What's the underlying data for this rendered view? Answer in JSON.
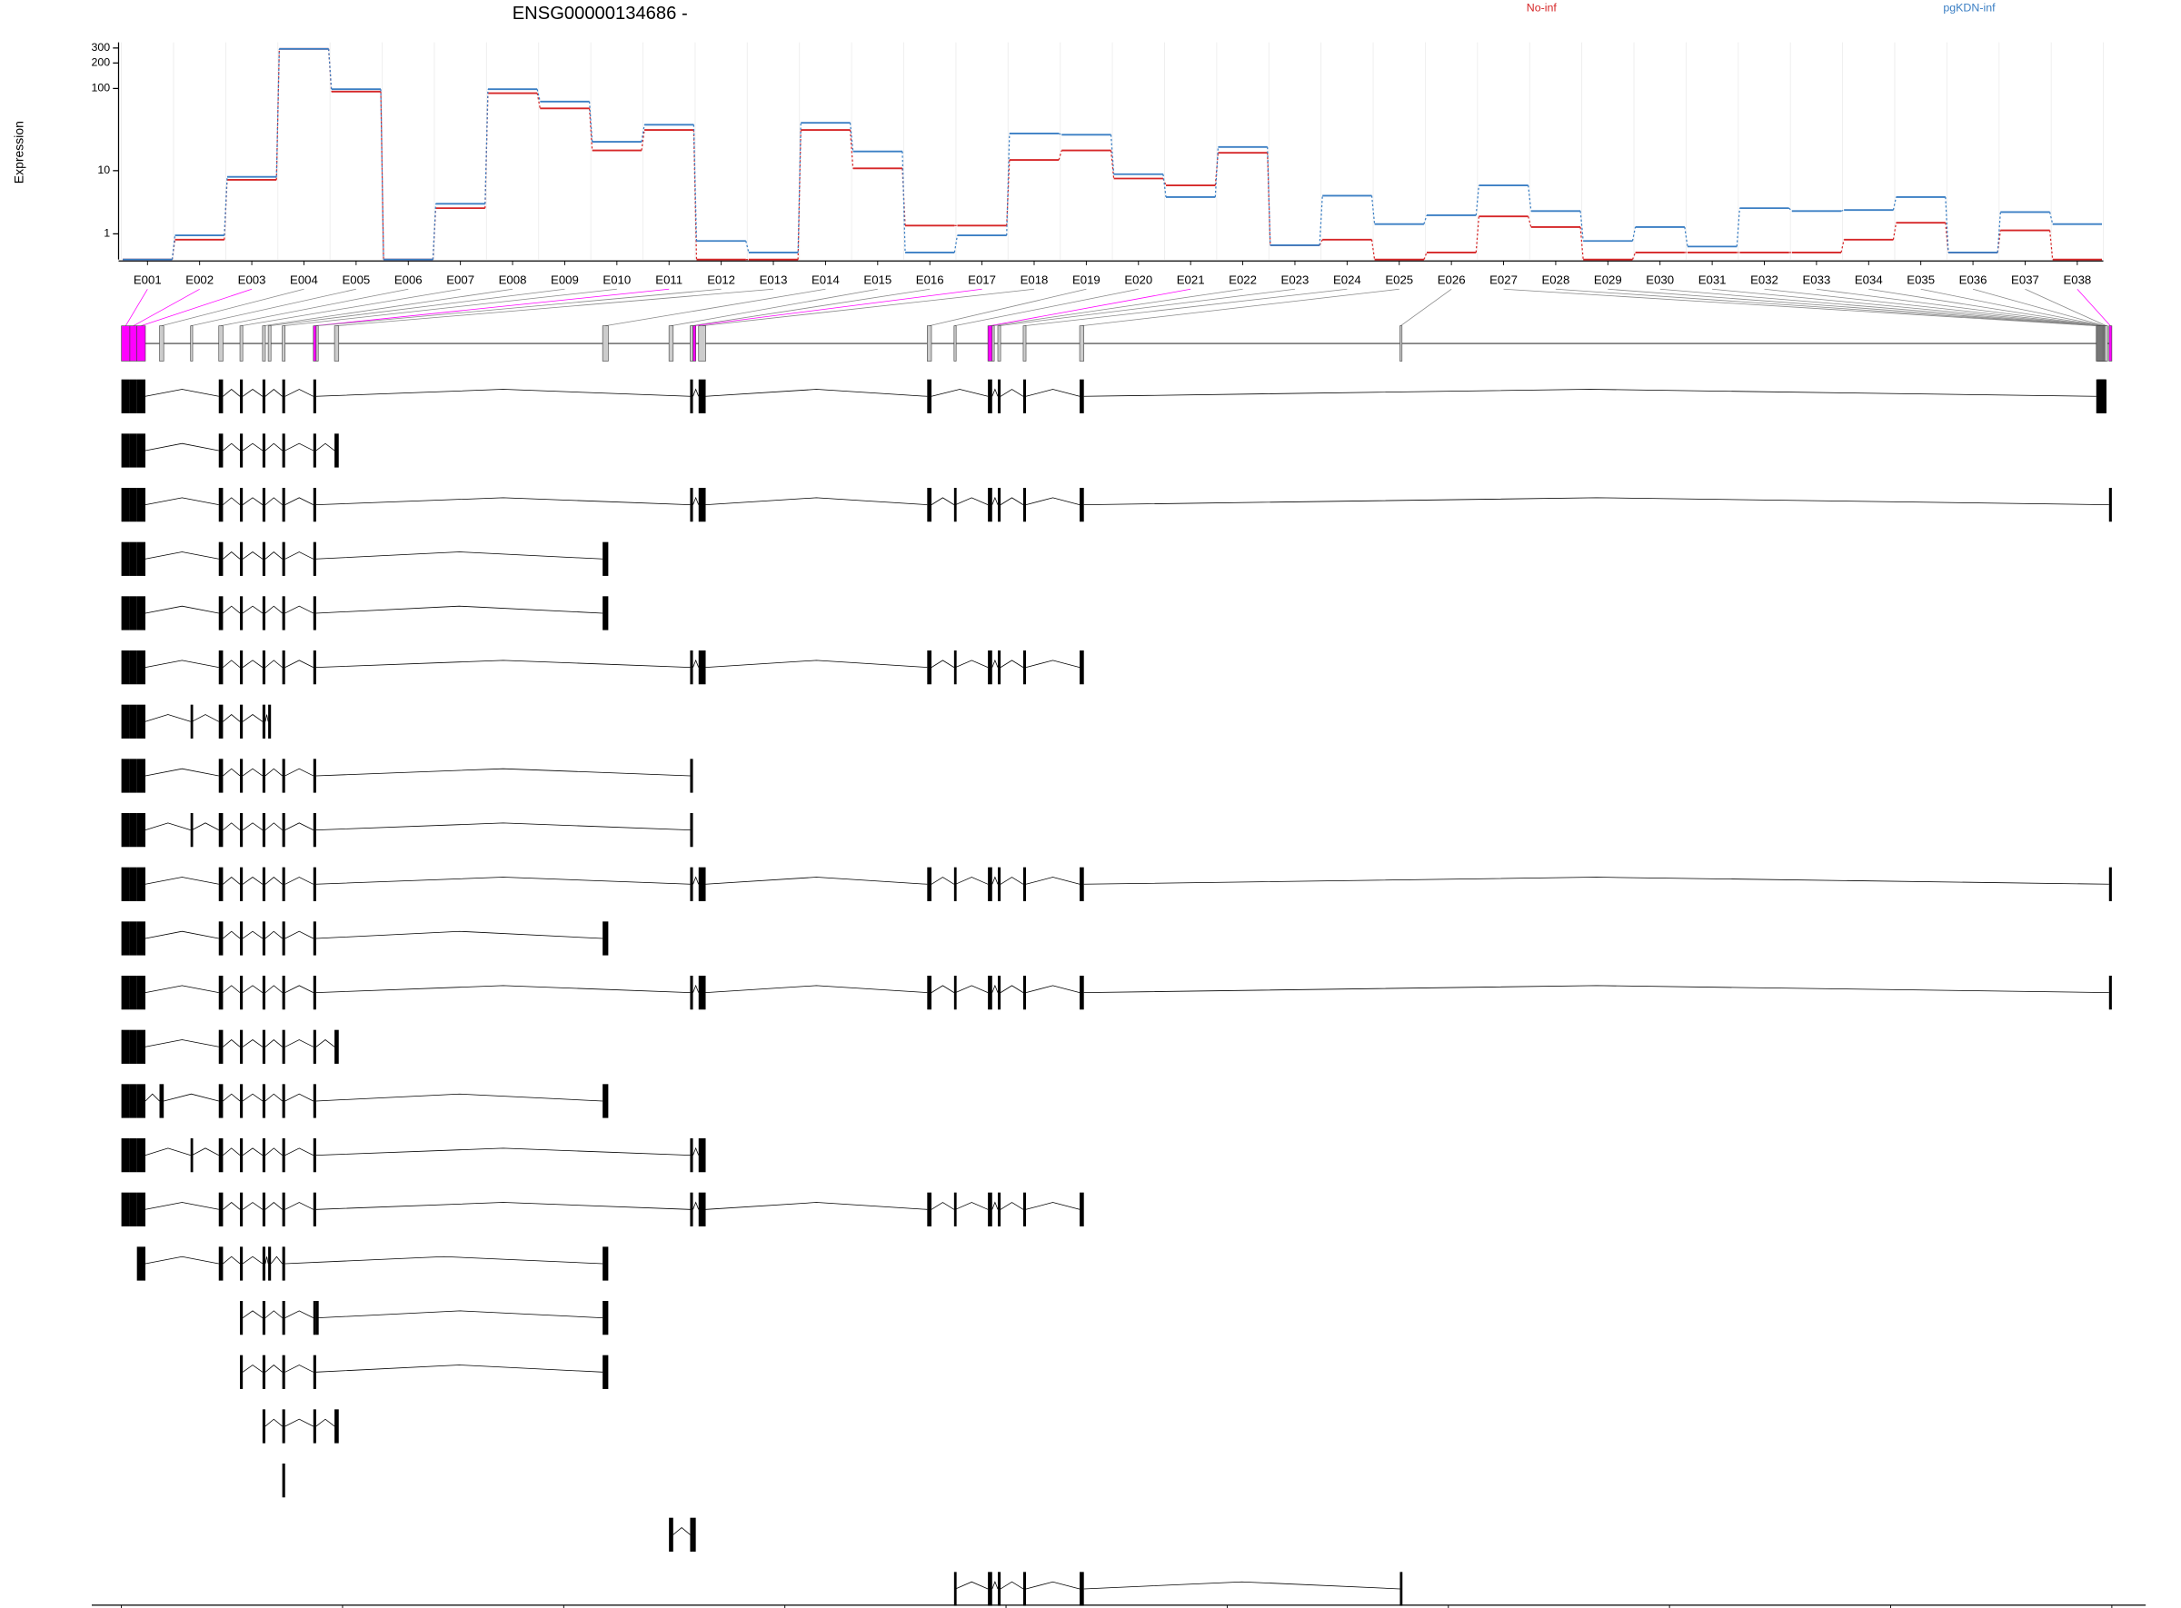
{
  "chart_data": {
    "type": "line",
    "step": true,
    "title": "ENSG00000134686 -",
    "ylabel": "Expression",
    "scale": "log1p",
    "grid": true,
    "ylim": [
      0,
      350
    ],
    "yticks": [
      1,
      10,
      100,
      200,
      300
    ],
    "categories": [
      "E001",
      "E002",
      "E003",
      "E004",
      "E005",
      "E006",
      "E007",
      "E008",
      "E009",
      "E010",
      "E011",
      "E012",
      "E013",
      "E014",
      "E015",
      "E016",
      "E017",
      "E018",
      "E019",
      "E020",
      "E021",
      "E022",
      "E023",
      "E024",
      "E025",
      "E026",
      "E027",
      "E028",
      "E029",
      "E030",
      "E031",
      "E032",
      "E033",
      "E034",
      "E035",
      "E036",
      "E037",
      "E038"
    ],
    "series": [
      {
        "name": "No-inf",
        "color": "#d62728",
        "values": [
          0,
          0.71,
          7.6,
          293,
          92,
          0,
          3.0,
          88,
          58,
          18,
          32,
          0,
          0,
          32,
          10.7,
          1.5,
          1.5,
          13.7,
          18,
          7.9,
          6.4,
          16.8,
          0.47,
          0.71,
          0,
          0.21,
          2.2,
          1.4,
          0,
          0.21,
          0.21,
          0.21,
          0.21,
          0.71,
          1.7,
          0.21,
          1.2,
          0
        ]
      },
      {
        "name": "pgKDN-inf",
        "color": "#3b7fc4",
        "values": [
          0,
          0.92,
          8.3,
          293,
          98,
          0,
          3.5,
          98,
          70,
          23,
          37,
          0.65,
          0.21,
          39,
          17.5,
          0.21,
          0.92,
          29,
          28,
          9.0,
          4.4,
          19.8,
          0.47,
          4.6,
          1.6,
          2.3,
          6.4,
          2.7,
          0.65,
          1.4,
          0.42,
          3.0,
          2.7,
          2.8,
          4.4,
          0.21,
          2.6,
          1.6
        ]
      }
    ],
    "gene_model": {
      "highlight_color": "#ff00ff",
      "highlight": [
        "E001",
        "E002",
        "E003",
        "E011",
        "E017",
        "E021",
        "E038"
      ],
      "exons": [
        [
          33323623,
          33324080
        ],
        [
          33324080,
          33324461
        ],
        [
          33324461,
          33324918
        ],
        [
          33325680,
          33325909
        ],
        [
          33327357,
          33327433
        ],
        [
          33328881,
          33329110
        ],
        [
          33330024,
          33330177
        ],
        [
          33331243,
          33331396
        ],
        [
          33331548,
          33331700
        ],
        [
          33332310,
          33332462
        ],
        [
          33333986,
          33334138
        ],
        [
          33334138,
          33334215
        ],
        [
          33335129,
          33335358
        ],
        [
          33349607,
          33349912
        ],
        [
          33353189,
          33353417
        ],
        [
          33354332,
          33354484
        ],
        [
          33354484,
          33354636
        ],
        [
          33354789,
          33355170
        ],
        [
          33367133,
          33367362
        ],
        [
          33368581,
          33368657
        ],
        [
          33370410,
          33370639
        ],
        [
          33370639,
          33370715
        ],
        [
          33370944,
          33371096
        ],
        [
          33372315,
          33372467
        ],
        [
          33375363,
          33375591
        ],
        [
          33392655,
          33392731
        ],
        [
          33430255,
          33430301
        ],
        [
          33430301,
          33430347
        ],
        [
          33430347,
          33430393
        ],
        [
          33430393,
          33430439
        ],
        [
          33430439,
          33430485
        ],
        [
          33430485,
          33430531
        ],
        [
          33430531,
          33430577
        ],
        [
          33430577,
          33430623
        ],
        [
          33430623,
          33430669
        ],
        [
          33430669,
          33430715
        ],
        [
          33430715,
          33430865
        ],
        [
          33430943,
          33431095
        ]
      ],
      "transcripts": [
        [
          "E001",
          "E002",
          "E003",
          "E006",
          "E007",
          "E008",
          "E010",
          "E011",
          "E016",
          "E018",
          "E019",
          "E021",
          "E023",
          "E024",
          "E025",
          "E027",
          "E028",
          "E029",
          "E030",
          "E031",
          "E032",
          "E033",
          "E034",
          "E035",
          "E036"
        ],
        [
          "E001",
          "E002",
          "E003",
          "E006",
          "E007",
          "E008",
          "E010",
          "E011",
          "E013"
        ],
        [
          "E001",
          "E002",
          "E003",
          "E006",
          "E007",
          "E008",
          "E010",
          "E011",
          "E016",
          "E018",
          "E019",
          "E020",
          "E021",
          "E023",
          "E024",
          "E025",
          "E038"
        ],
        [
          "E001",
          "E002",
          "E003",
          "E006",
          "E007",
          "E008",
          "E010",
          "E011",
          "E014"
        ],
        [
          "E001",
          "E002",
          "E003",
          "E006",
          "E007",
          "E008",
          "E010",
          "E011",
          "E014"
        ],
        [
          "E001",
          "E002",
          "E003",
          "E006",
          "E007",
          "E008",
          "E010",
          "E011",
          "E016",
          "E018",
          "E019",
          "E020",
          "E021",
          "E023",
          "E024",
          "E025"
        ],
        [
          "E001",
          "E002",
          "E003",
          "E005",
          "E006",
          "E007",
          "E008",
          "E009"
        ],
        [
          "E001",
          "E002",
          "E003",
          "E006",
          "E007",
          "E008",
          "E010",
          "E011",
          "E016"
        ],
        [
          "E001",
          "E002",
          "E003",
          "E005",
          "E006",
          "E007",
          "E008",
          "E010",
          "E011",
          "E016"
        ],
        [
          "E001",
          "E002",
          "E003",
          "E006",
          "E007",
          "E008",
          "E010",
          "E011",
          "E016",
          "E018",
          "E019",
          "E020",
          "E021",
          "E023",
          "E024",
          "E025",
          "E038"
        ],
        [
          "E001",
          "E002",
          "E003",
          "E006",
          "E007",
          "E008",
          "E010",
          "E011",
          "E014"
        ],
        [
          "E001",
          "E002",
          "E003",
          "E006",
          "E007",
          "E008",
          "E010",
          "E011",
          "E016",
          "E018",
          "E019",
          "E020",
          "E021",
          "E023",
          "E024",
          "E025",
          "E038"
        ],
        [
          "E001",
          "E002",
          "E003",
          "E006",
          "E007",
          "E008",
          "E010",
          "E011",
          "E013"
        ],
        [
          "E001",
          "E002",
          "E003",
          "E004",
          "E006",
          "E007",
          "E008",
          "E010",
          "E011",
          "E014"
        ],
        [
          "E001",
          "E002",
          "E003",
          "E005",
          "E006",
          "E007",
          "E008",
          "E010",
          "E011",
          "E016",
          "E018"
        ],
        [
          "E001",
          "E002",
          "E003",
          "E006",
          "E007",
          "E008",
          "E010",
          "E011",
          "E016",
          "E018",
          "E019",
          "E020",
          "E021",
          "E023",
          "E024",
          "E025"
        ],
        [
          "E003",
          "E006",
          "E007",
          "E008",
          "E009",
          "E010",
          "E014"
        ],
        [
          "E007",
          "E008",
          "E010",
          "E011",
          "E012",
          "E014"
        ],
        [
          "E007",
          "E008",
          "E010",
          "E011",
          "E014"
        ],
        [
          "E008",
          "E010",
          "E011",
          "E013"
        ],
        [
          "E010"
        ],
        [
          "E015",
          "E016",
          "E017"
        ],
        [
          "E020",
          "E021",
          "E023",
          "E024",
          "E025",
          "E026"
        ]
      ]
    },
    "genome_xlim": [
      33323623,
      33431095
    ],
    "genome_xticks": [
      33323623,
      33335564,
      33347506,
      33359447,
      33371388,
      33383330,
      33395271,
      33407212,
      33419154,
      33431095
    ]
  }
}
